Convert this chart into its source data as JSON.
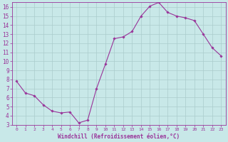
{
  "x": [
    0,
    1,
    2,
    3,
    4,
    5,
    6,
    7,
    8,
    9,
    10,
    11,
    12,
    13,
    14,
    15,
    16,
    17,
    18,
    19,
    20,
    21,
    22,
    23
  ],
  "y": [
    7.8,
    6.5,
    6.2,
    5.2,
    4.5,
    4.3,
    4.4,
    3.2,
    3.5,
    7.0,
    9.7,
    12.5,
    12.7,
    13.3,
    15.0,
    16.1,
    16.5,
    15.4,
    15.0,
    14.8,
    14.5,
    13.0,
    11.5,
    10.6
  ],
  "line_color": "#993399",
  "bg_color": "#c8e8e8",
  "grid_color": "#aacccc",
  "xlabel": "Windchill (Refroidissement éolien,°C)",
  "xlabel_color": "#993399",
  "tick_color": "#993399",
  "ylim": [
    3,
    16.5
  ],
  "xlim": [
    -0.5,
    23.5
  ],
  "yticks": [
    3,
    4,
    5,
    6,
    7,
    8,
    9,
    10,
    11,
    12,
    13,
    14,
    15,
    16
  ],
  "xticks": [
    0,
    1,
    2,
    3,
    4,
    5,
    6,
    7,
    8,
    9,
    10,
    11,
    12,
    13,
    14,
    15,
    16,
    17,
    18,
    19,
    20,
    21,
    22,
    23
  ]
}
